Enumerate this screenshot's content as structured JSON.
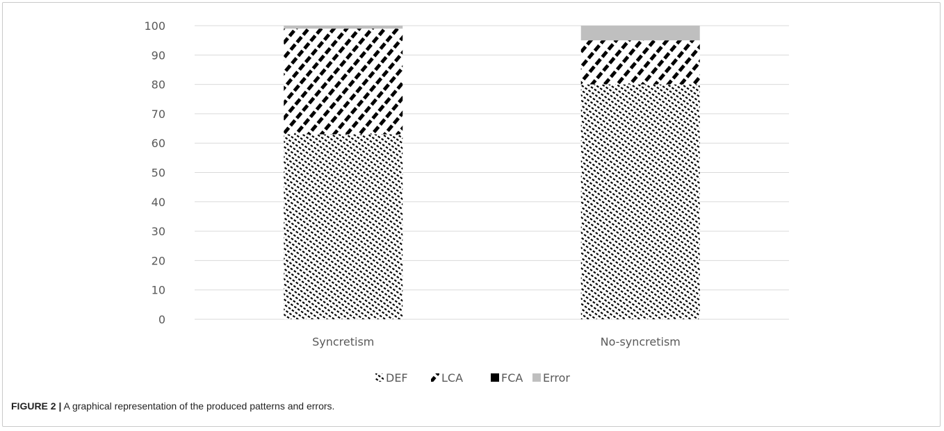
{
  "chart_data": {
    "type": "bar",
    "stacked": true,
    "categories": [
      "Syncretism",
      "No-syncretism"
    ],
    "series": [
      {
        "name": "DEF",
        "values": [
          63,
          80
        ],
        "fill": "pattern-def"
      },
      {
        "name": "LCA",
        "values": [
          36,
          15
        ],
        "fill": "pattern-lca"
      },
      {
        "name": "FCA",
        "values": [
          0,
          0
        ],
        "fill": "#000000"
      },
      {
        "name": "Error",
        "values": [
          1,
          5
        ],
        "fill": "#bfbfbf"
      }
    ],
    "yticks": [
      0,
      10,
      20,
      30,
      40,
      50,
      60,
      70,
      80,
      90,
      100
    ],
    "ylim": [
      0,
      100
    ],
    "grid": true,
    "legend_position": "bottom",
    "title": "",
    "xlabel": "",
    "ylabel": ""
  },
  "caption": {
    "label": "FIGURE 2 |",
    "text": " A graphical representation of the produced patterns and errors."
  },
  "colors": {
    "gridline": "#d9d9d9",
    "text": "#595959",
    "error": "#bfbfbf",
    "frame": "#c9c9c9"
  }
}
